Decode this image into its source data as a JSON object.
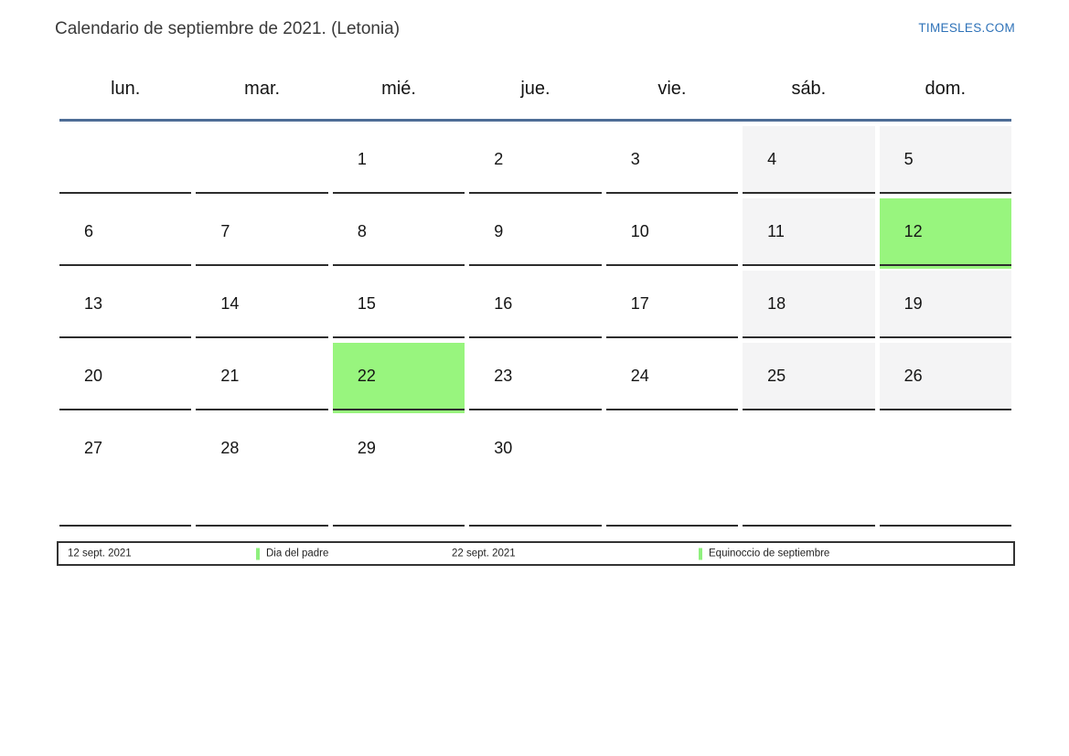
{
  "header": {
    "title": "Calendario de septiembre de 2021. (Letonia)",
    "site_link": "TIMESLES.COM"
  },
  "calendar": {
    "weekday_headers": [
      "lun.",
      "mar.",
      "mié.",
      "jue.",
      "vie.",
      "sáb.",
      "dom."
    ],
    "weeks": [
      [
        {
          "label": "",
          "type": "empty"
        },
        {
          "label": "",
          "type": "empty"
        },
        {
          "label": "1",
          "type": "normal"
        },
        {
          "label": "2",
          "type": "normal"
        },
        {
          "label": "3",
          "type": "normal"
        },
        {
          "label": "4",
          "type": "weekend"
        },
        {
          "label": "5",
          "type": "weekend"
        }
      ],
      [
        {
          "label": "6",
          "type": "normal"
        },
        {
          "label": "7",
          "type": "normal"
        },
        {
          "label": "8",
          "type": "normal"
        },
        {
          "label": "9",
          "type": "normal"
        },
        {
          "label": "10",
          "type": "normal"
        },
        {
          "label": "11",
          "type": "weekend"
        },
        {
          "label": "12",
          "type": "holiday"
        }
      ],
      [
        {
          "label": "13",
          "type": "normal"
        },
        {
          "label": "14",
          "type": "normal"
        },
        {
          "label": "15",
          "type": "normal"
        },
        {
          "label": "16",
          "type": "normal"
        },
        {
          "label": "17",
          "type": "normal"
        },
        {
          "label": "18",
          "type": "weekend"
        },
        {
          "label": "19",
          "type": "weekend"
        }
      ],
      [
        {
          "label": "20",
          "type": "normal"
        },
        {
          "label": "21",
          "type": "normal"
        },
        {
          "label": "22",
          "type": "holiday"
        },
        {
          "label": "23",
          "type": "normal"
        },
        {
          "label": "24",
          "type": "normal"
        },
        {
          "label": "25",
          "type": "weekend"
        },
        {
          "label": "26",
          "type": "weekend"
        }
      ],
      [
        {
          "label": "27",
          "type": "normal"
        },
        {
          "label": "28",
          "type": "normal"
        },
        {
          "label": "29",
          "type": "normal"
        },
        {
          "label": "30",
          "type": "normal"
        },
        {
          "label": "",
          "type": "empty"
        },
        {
          "label": "",
          "type": "empty"
        },
        {
          "label": "",
          "type": "empty"
        }
      ]
    ]
  },
  "legend": {
    "events": [
      {
        "date": "12 sept. 2021",
        "label": "Dia del padre"
      },
      {
        "date": "22 sept. 2021",
        "label": "Equinoccio de septiembre"
      }
    ]
  },
  "colors": {
    "holiday_green": "#98f57e",
    "weekend_gray": "#f4f4f5",
    "divider_blue": "#4e6d96",
    "link_blue": "#2e72b8"
  }
}
